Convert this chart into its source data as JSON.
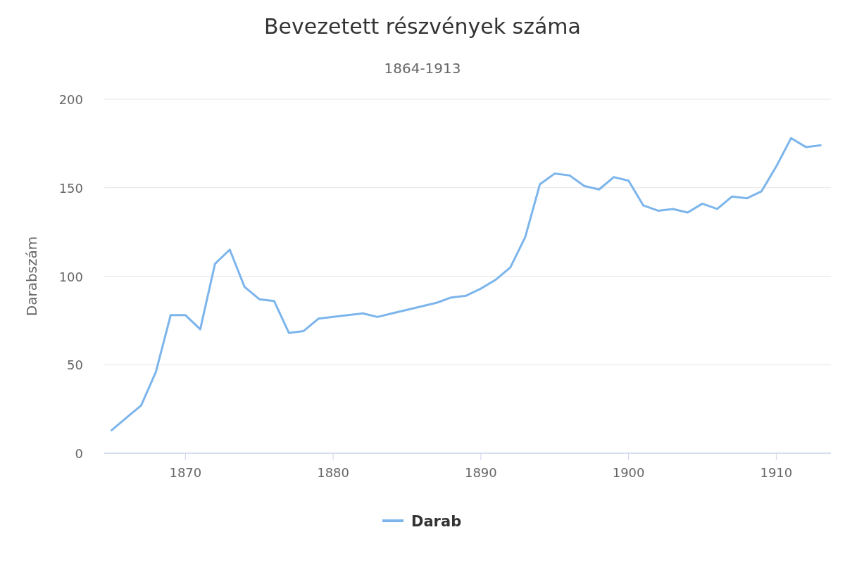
{
  "chart_data": {
    "type": "line",
    "title": "Bevezetett részvények száma",
    "subtitle": "1864-1913",
    "ylabel": "Darabszám",
    "x": [
      1865,
      1866,
      1867,
      1868,
      1869,
      1870,
      1871,
      1872,
      1873,
      1874,
      1875,
      1876,
      1877,
      1878,
      1879,
      1880,
      1881,
      1882,
      1883,
      1884,
      1885,
      1886,
      1887,
      1888,
      1889,
      1890,
      1891,
      1892,
      1893,
      1894,
      1895,
      1896,
      1897,
      1898,
      1899,
      1900,
      1901,
      1902,
      1903,
      1904,
      1905,
      1906,
      1907,
      1908,
      1909,
      1910,
      1911,
      1912,
      1913
    ],
    "series": [
      {
        "name": "Darab",
        "color": "#7cb5ec",
        "values": [
          13,
          20,
          27,
          46,
          78,
          78,
          70,
          107,
          115,
          94,
          87,
          86,
          68,
          69,
          76,
          77,
          78,
          79,
          77,
          79,
          81,
          83,
          85,
          88,
          89,
          93,
          98,
          105,
          122,
          152,
          158,
          157,
          151,
          149,
          156,
          154,
          140,
          137,
          138,
          136,
          141,
          138,
          145,
          144,
          148,
          162,
          178,
          173,
          174
        ]
      }
    ],
    "xlim": [
      1864.5,
      1913.7
    ],
    "xticks": [
      1870,
      1880,
      1890,
      1900,
      1910
    ],
    "ylim": [
      0,
      200
    ],
    "yticks": [
      0,
      50,
      100,
      150,
      200
    ],
    "grid": "y",
    "legend": "bottom",
    "marker": "none",
    "line_style": "solid"
  }
}
